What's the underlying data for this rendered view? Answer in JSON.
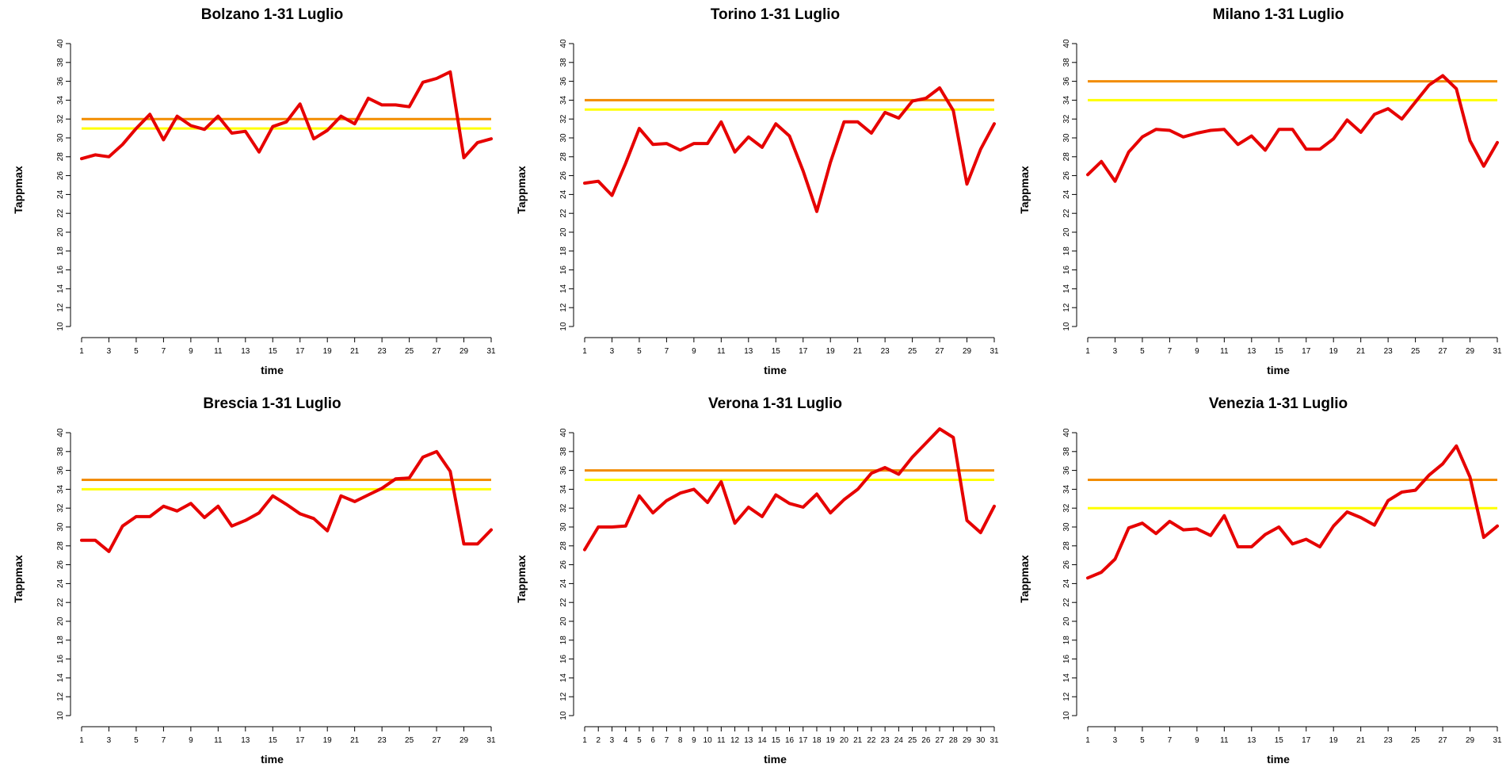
{
  "chart_data": [
    {
      "type": "line",
      "title": "Bolzano 1-31 Luglio",
      "xlabel": "time",
      "ylabel": "Tappmax",
      "ylim": [
        10,
        40
      ],
      "xlim": [
        1,
        31
      ],
      "x_ticks": [
        1,
        3,
        5,
        7,
        9,
        11,
        13,
        15,
        17,
        19,
        21,
        23,
        25,
        27,
        29,
        31
      ],
      "y_ticks": [
        10,
        12,
        14,
        16,
        18,
        20,
        22,
        24,
        26,
        28,
        30,
        32,
        34,
        36,
        38,
        40
      ],
      "x": [
        1,
        2,
        3,
        4,
        5,
        6,
        7,
        8,
        9,
        10,
        11,
        12,
        13,
        14,
        15,
        16,
        17,
        18,
        19,
        20,
        21,
        22,
        23,
        24,
        25,
        26,
        27,
        28,
        29,
        30,
        31
      ],
      "values": [
        27.8,
        28.2,
        28.0,
        29.3,
        31.0,
        32.5,
        29.8,
        32.3,
        31.3,
        30.9,
        32.3,
        30.5,
        30.7,
        28.5,
        31.2,
        31.7,
        33.6,
        29.9,
        30.8,
        32.3,
        31.5,
        34.2,
        33.5,
        33.5,
        33.3,
        35.9,
        36.3,
        37.0,
        27.9,
        29.5,
        29.9
      ],
      "hlines": [
        {
          "value": 32,
          "color": "#f28c00"
        },
        {
          "value": 31,
          "color": "#ffff00"
        }
      ],
      "line_color": "#e60000",
      "grid": false
    },
    {
      "type": "line",
      "title": "Torino 1-31 Luglio",
      "xlabel": "time",
      "ylabel": "Tappmax",
      "ylim": [
        10,
        40
      ],
      "xlim": [
        1,
        31
      ],
      "x_ticks": [
        1,
        3,
        5,
        7,
        9,
        11,
        13,
        15,
        17,
        19,
        21,
        23,
        25,
        27,
        29,
        31
      ],
      "y_ticks": [
        10,
        12,
        14,
        16,
        18,
        20,
        22,
        24,
        26,
        28,
        30,
        32,
        34,
        36,
        38,
        40
      ],
      "x": [
        1,
        2,
        3,
        4,
        5,
        6,
        7,
        8,
        9,
        10,
        11,
        12,
        13,
        14,
        15,
        16,
        17,
        18,
        19,
        20,
        21,
        22,
        23,
        24,
        25,
        26,
        27,
        28,
        29,
        30,
        31
      ],
      "values": [
        25.2,
        25.4,
        23.9,
        27.3,
        31.0,
        29.3,
        29.4,
        28.7,
        29.4,
        29.4,
        31.7,
        28.5,
        30.1,
        29.0,
        31.5,
        30.2,
        26.5,
        22.2,
        27.4,
        31.7,
        31.7,
        30.5,
        32.7,
        32.1,
        33.9,
        34.2,
        35.3,
        32.9,
        25.1,
        28.8,
        31.5
      ],
      "hlines": [
        {
          "value": 34,
          "color": "#f28c00"
        },
        {
          "value": 33,
          "color": "#ffff00"
        }
      ],
      "line_color": "#e60000",
      "grid": false
    },
    {
      "type": "line",
      "title": "Milano 1-31 Luglio",
      "xlabel": "time",
      "ylabel": "Tappmax",
      "ylim": [
        10,
        40
      ],
      "xlim": [
        1,
        31
      ],
      "x_ticks": [
        1,
        3,
        5,
        7,
        9,
        11,
        13,
        15,
        17,
        19,
        21,
        23,
        25,
        27,
        29,
        31
      ],
      "y_ticks": [
        10,
        12,
        14,
        16,
        18,
        20,
        22,
        24,
        26,
        28,
        30,
        32,
        34,
        36,
        38,
        40
      ],
      "x": [
        1,
        2,
        3,
        4,
        5,
        6,
        7,
        8,
        9,
        10,
        11,
        12,
        13,
        14,
        15,
        16,
        17,
        18,
        19,
        20,
        21,
        22,
        23,
        24,
        25,
        26,
        27,
        28,
        29,
        30,
        31
      ],
      "values": [
        26.1,
        27.5,
        25.4,
        28.5,
        30.1,
        30.9,
        30.8,
        30.1,
        30.5,
        30.8,
        30.9,
        29.3,
        30.2,
        28.7,
        30.9,
        30.9,
        28.8,
        28.8,
        29.9,
        31.9,
        30.6,
        32.5,
        33.1,
        32.0,
        33.8,
        35.6,
        36.6,
        35.2,
        29.7,
        27.0,
        29.5
      ],
      "hlines": [
        {
          "value": 36,
          "color": "#f28c00"
        },
        {
          "value": 34,
          "color": "#ffff00"
        }
      ],
      "line_color": "#e60000",
      "grid": false
    },
    {
      "type": "line",
      "title": "Brescia 1-31 Luglio",
      "xlabel": "time",
      "ylabel": "Tappmax",
      "ylim": [
        10,
        40
      ],
      "xlim": [
        1,
        31
      ],
      "x_ticks": [
        1,
        3,
        5,
        7,
        9,
        11,
        13,
        15,
        17,
        19,
        21,
        23,
        25,
        27,
        29,
        31
      ],
      "y_ticks": [
        10,
        12,
        14,
        16,
        18,
        20,
        22,
        24,
        26,
        28,
        30,
        32,
        34,
        36,
        38,
        40
      ],
      "x": [
        1,
        2,
        3,
        4,
        5,
        6,
        7,
        8,
        9,
        10,
        11,
        12,
        13,
        14,
        15,
        16,
        17,
        18,
        19,
        20,
        21,
        22,
        23,
        24,
        25,
        26,
        27,
        28,
        29,
        30,
        31
      ],
      "values": [
        28.6,
        28.6,
        27.4,
        30.1,
        31.1,
        31.1,
        32.2,
        31.7,
        32.5,
        31.0,
        32.2,
        30.1,
        30.7,
        31.5,
        33.3,
        32.4,
        31.4,
        30.9,
        29.6,
        33.3,
        32.7,
        33.4,
        34.1,
        35.1,
        35.2,
        37.4,
        38.0,
        35.9,
        28.2,
        28.2,
        29.7
      ],
      "hlines": [
        {
          "value": 35,
          "color": "#f28c00"
        },
        {
          "value": 34,
          "color": "#ffff00"
        }
      ],
      "line_color": "#e60000",
      "grid": false
    },
    {
      "type": "line",
      "title": "Verona 1-31 Luglio",
      "xlabel": "time",
      "ylabel": "Tappmax",
      "ylim": [
        10,
        40
      ],
      "xlim": [
        1,
        31
      ],
      "x_ticks": [
        1,
        2,
        3,
        4,
        5,
        6,
        7,
        8,
        9,
        10,
        11,
        12,
        13,
        14,
        15,
        16,
        17,
        18,
        19,
        20,
        21,
        22,
        23,
        24,
        25,
        26,
        27,
        28,
        29,
        30,
        31
      ],
      "y_ticks": [
        10,
        12,
        14,
        16,
        18,
        20,
        22,
        24,
        26,
        28,
        30,
        32,
        34,
        36,
        38,
        40
      ],
      "x": [
        1,
        2,
        3,
        4,
        5,
        6,
        7,
        8,
        9,
        10,
        11,
        12,
        13,
        14,
        15,
        16,
        17,
        18,
        19,
        20,
        21,
        22,
        23,
        24,
        25,
        26,
        27,
        28,
        29,
        30,
        31
      ],
      "values": [
        27.6,
        30.0,
        30.0,
        30.1,
        33.3,
        31.5,
        32.8,
        33.6,
        34.0,
        32.6,
        34.8,
        30.4,
        32.1,
        31.1,
        33.4,
        32.5,
        32.1,
        33.5,
        31.5,
        32.9,
        34.0,
        35.7,
        36.3,
        35.6,
        37.4,
        38.9,
        40.4,
        39.5,
        30.7,
        29.4,
        32.2
      ],
      "hlines": [
        {
          "value": 36,
          "color": "#f28c00"
        },
        {
          "value": 35,
          "color": "#ffff00"
        }
      ],
      "line_color": "#e60000",
      "grid": false
    },
    {
      "type": "line",
      "title": "Venezia 1-31 Luglio",
      "xlabel": "time",
      "ylabel": "Tappmax",
      "ylim": [
        10,
        40
      ],
      "xlim": [
        1,
        31
      ],
      "x_ticks": [
        1,
        3,
        5,
        7,
        9,
        11,
        13,
        15,
        17,
        19,
        21,
        23,
        25,
        27,
        29,
        31
      ],
      "y_ticks": [
        10,
        12,
        14,
        16,
        18,
        20,
        22,
        24,
        26,
        28,
        30,
        32,
        34,
        36,
        38,
        40
      ],
      "x": [
        1,
        2,
        3,
        4,
        5,
        6,
        7,
        8,
        9,
        10,
        11,
        12,
        13,
        14,
        15,
        16,
        17,
        18,
        19,
        20,
        21,
        22,
        23,
        24,
        25,
        26,
        27,
        28,
        29,
        30,
        31
      ],
      "values": [
        24.6,
        25.2,
        26.6,
        29.9,
        30.4,
        29.3,
        30.6,
        29.7,
        29.8,
        29.1,
        31.2,
        27.9,
        27.9,
        29.2,
        30.0,
        28.2,
        28.7,
        27.9,
        30.1,
        31.6,
        31.0,
        30.2,
        32.8,
        33.7,
        33.9,
        35.5,
        36.7,
        38.6,
        35.3,
        28.9,
        30.1
      ],
      "hlines": [
        {
          "value": 35,
          "color": "#f28c00"
        },
        {
          "value": 32,
          "color": "#ffff00"
        }
      ],
      "line_color": "#e60000",
      "grid": false
    }
  ]
}
